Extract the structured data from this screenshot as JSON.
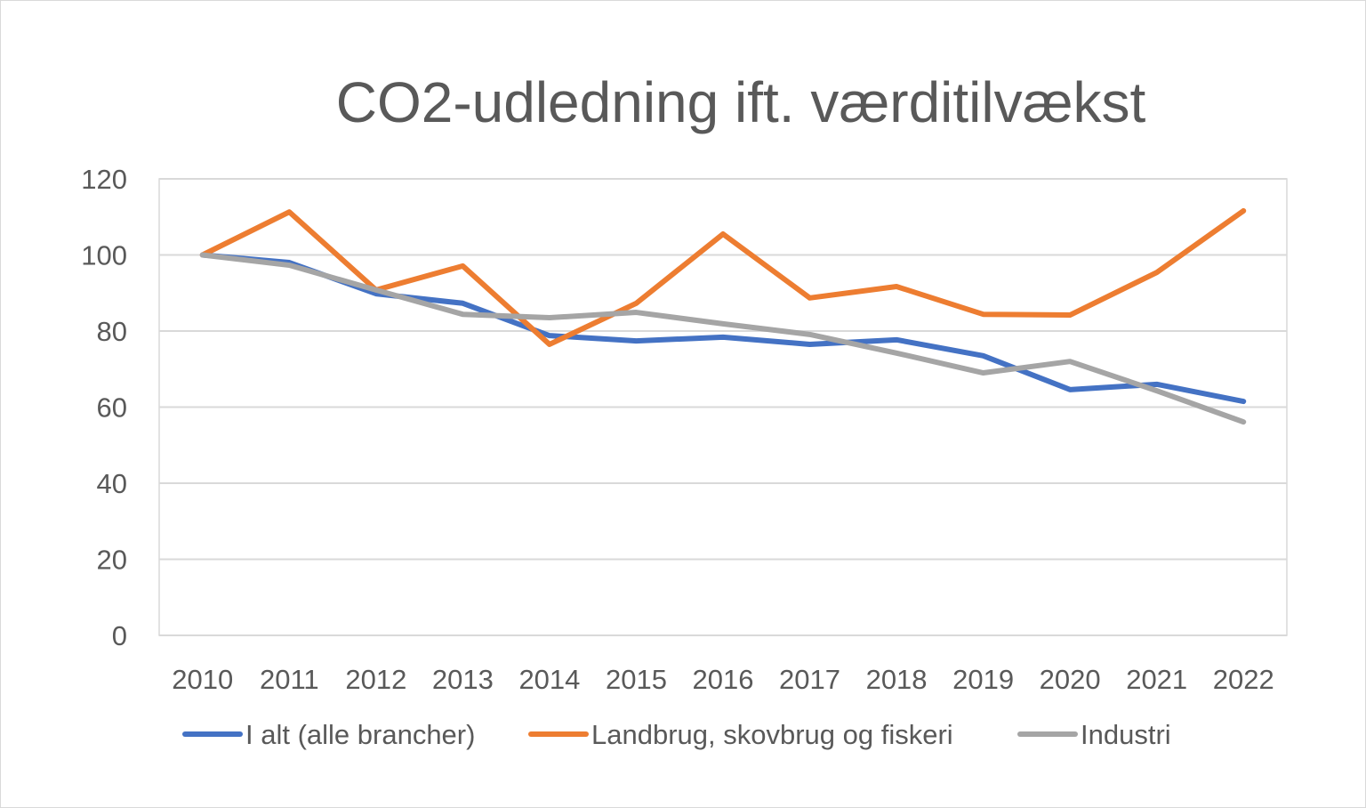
{
  "chart_data": {
    "type": "line",
    "title": "CO2-udledning ift. værditilvækst",
    "xlabel": "",
    "ylabel": "",
    "categories": [
      "2010",
      "2011",
      "2012",
      "2013",
      "2014",
      "2015",
      "2016",
      "2017",
      "2018",
      "2019",
      "2020",
      "2021",
      "2022"
    ],
    "ylim": [
      0,
      120
    ],
    "yticks": [
      0,
      20,
      40,
      60,
      80,
      100,
      120
    ],
    "grid": true,
    "legend": "bottom",
    "series": [
      {
        "name": "I alt (alle brancher)",
        "color": "#4472c4",
        "values": [
          100,
          98.0,
          89.8,
          87.3,
          78.8,
          77.4,
          78.4,
          76.5,
          77.7,
          73.5,
          64.6,
          66.0,
          61.5
        ]
      },
      {
        "name": "Landbrug, skovbrug og fiskeri",
        "color": "#ed7d31",
        "values": [
          100,
          111.3,
          90.8,
          97.1,
          76.5,
          87.3,
          105.5,
          88.7,
          91.7,
          84.4,
          84.2,
          95.4,
          111.6
        ]
      },
      {
        "name": "Industri",
        "color": "#a5a5a5",
        "values": [
          100,
          97.3,
          90.8,
          84.4,
          83.5,
          84.9,
          81.9,
          79.1,
          74.2,
          69.0,
          72.0,
          64.3,
          56.1
        ]
      }
    ]
  }
}
